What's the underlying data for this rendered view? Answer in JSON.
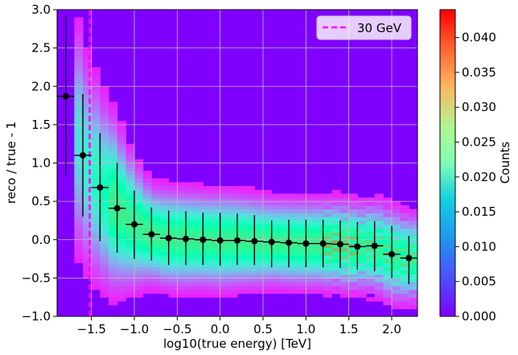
{
  "chart_data": {
    "type": "heatmap",
    "title": "",
    "xlabel": "log10(true energy) [TeV]",
    "ylabel": "reco / true - 1",
    "xlim": [
      -1.9,
      2.3
    ],
    "ylim": [
      -1.0,
      3.0
    ],
    "xticks": [
      -1.5,
      -1.0,
      -0.5,
      0.0,
      0.5,
      1.0,
      1.5,
      2.0
    ],
    "xtick_labels": [
      "−1.5",
      "−1.0",
      "−0.5",
      "0.0",
      "0.5",
      "1.0",
      "1.5",
      "2.0"
    ],
    "yticks": [
      -1.0,
      -0.5,
      0.0,
      0.5,
      1.0,
      1.5,
      2.0,
      2.5,
      3.0
    ],
    "ytick_labels": [
      "−1.0",
      "−0.5",
      "0.0",
      "0.5",
      "1.0",
      "1.5",
      "2.0",
      "2.5",
      "3.0"
    ],
    "grid": true,
    "vline": {
      "x": -1.52,
      "label": "30 GeV",
      "color": "#ff00ff",
      "style": "dashed"
    },
    "legend": {
      "location": "top-right",
      "entries": [
        "30 GeV"
      ]
    },
    "colorbar": {
      "label": "Counts",
      "range": [
        0.0,
        0.044
      ],
      "ticks": [
        0.0,
        0.005,
        0.01,
        0.015,
        0.02,
        0.025,
        0.03,
        0.035,
        0.04
      ],
      "tick_labels": [
        "0.000",
        "0.005",
        "0.010",
        "0.015",
        "0.020",
        "0.025",
        "0.030",
        "0.035",
        "0.040"
      ],
      "colormap": "rainbow"
    },
    "profile": {
      "x": [
        -1.8,
        -1.6,
        -1.4,
        -1.2,
        -1.0,
        -0.8,
        -0.6,
        -0.4,
        -0.2,
        0.0,
        0.2,
        0.4,
        0.6,
        0.8,
        1.0,
        1.2,
        1.4,
        1.6,
        1.8,
        2.0,
        2.2
      ],
      "y": [
        1.87,
        1.1,
        0.68,
        0.41,
        0.2,
        0.07,
        0.02,
        0.01,
        0.0,
        -0.01,
        -0.01,
        -0.02,
        -0.03,
        -0.04,
        -0.05,
        -0.05,
        -0.06,
        -0.09,
        -0.08,
        -0.19,
        -0.24
      ],
      "y_low": [
        0.84,
        0.3,
        -0.02,
        -0.17,
        -0.25,
        -0.27,
        -0.33,
        -0.33,
        -0.33,
        -0.34,
        -0.33,
        -0.33,
        -0.36,
        -0.36,
        -0.36,
        -0.36,
        -0.37,
        -0.39,
        -0.41,
        -0.5,
        -0.58
      ],
      "y_high": [
        2.92,
        1.9,
        1.39,
        1.0,
        0.64,
        0.42,
        0.38,
        0.37,
        0.35,
        0.35,
        0.34,
        0.32,
        0.25,
        0.26,
        0.26,
        0.26,
        0.25,
        0.23,
        0.24,
        0.18,
        0.05
      ],
      "x_halfwidth": 0.1
    }
  }
}
